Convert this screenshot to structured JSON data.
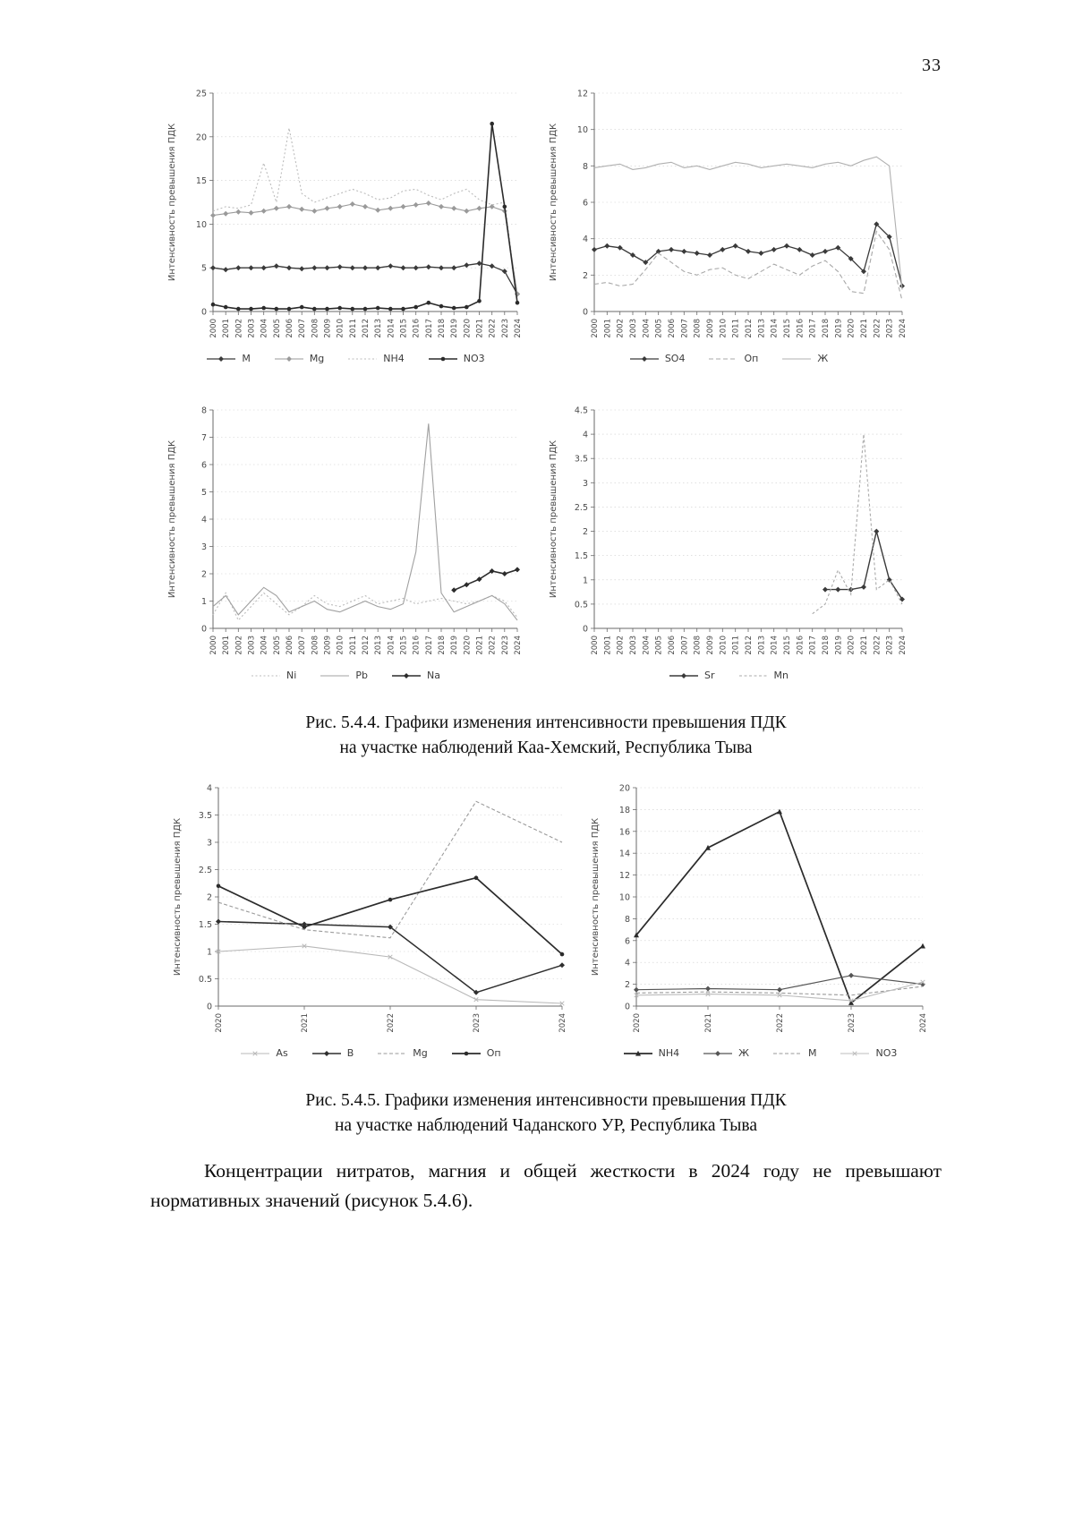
{
  "page": {
    "number": "33"
  },
  "figures": [
    {
      "caption_line1": "Рис. 5.4.4. Графики изменения интенсивности превышения ПДК",
      "caption_line2": "на участке наблюдений Каа-Хемский, Республика Тыва"
    },
    {
      "caption_line1": "Рис. 5.4.5. Графики изменения интенсивности превышения ПДК",
      "caption_line2": "на участке наблюдений Чаданского УР, Республика Тыва"
    }
  ],
  "paragraph": {
    "text": "Концентрации нитратов, магния и общей жесткости в 2024 году не превышают нормативных значений (рисунок 5.4.6)."
  },
  "chart_data": [
    {
      "type": "line",
      "ylabel": "Интенсивность превышения ПДК",
      "ylim": [
        0,
        25
      ],
      "ytick": 5,
      "grid": true,
      "legend_position": "bottom",
      "x": [
        "2000",
        "2001",
        "2002",
        "2003",
        "2004",
        "2005",
        "2006",
        "2007",
        "2008",
        "2009",
        "2010",
        "2011",
        "2012",
        "2013",
        "2014",
        "2015",
        "2016",
        "2017",
        "2018",
        "2019",
        "2020",
        "2021",
        "2022",
        "2023",
        "2024"
      ],
      "series": [
        {
          "name": "М",
          "values": [
            5,
            4.8,
            5,
            5,
            5,
            5.2,
            5,
            4.9,
            5,
            5,
            5.1,
            5,
            5,
            5,
            5.2,
            5,
            5,
            5.1,
            5,
            5,
            5.3,
            5.5,
            5.2,
            4.6,
            2
          ],
          "style": {
            "color": "#3a3a3a",
            "width": 1.3,
            "dash": "",
            "marker": "diamond"
          }
        },
        {
          "name": "Mg",
          "values": [
            11,
            11.2,
            11.4,
            11.3,
            11.5,
            11.8,
            12,
            11.7,
            11.5,
            11.8,
            12,
            12.3,
            12,
            11.6,
            11.8,
            12,
            12.2,
            12.4,
            12,
            11.8,
            11.5,
            11.8,
            12,
            11.5,
            2
          ],
          "style": {
            "color": "#9a9a9a",
            "width": 1.1,
            "dash": "",
            "marker": "diamond"
          }
        },
        {
          "name": "NH4",
          "values": [
            11.5,
            12,
            11.8,
            12.2,
            17,
            12.5,
            21,
            13.5,
            12.5,
            13,
            13.5,
            14,
            13.5,
            12.8,
            13,
            13.8,
            14,
            13.3,
            12.8,
            13.5,
            14,
            12.8,
            12.2,
            12.5,
            1.5
          ],
          "style": {
            "color": "#bcbcbc",
            "width": 1.1,
            "dash": "2 2.5",
            "marker": "none"
          }
        },
        {
          "name": "NO3",
          "values": [
            0.8,
            0.5,
            0.3,
            0.3,
            0.4,
            0.3,
            0.3,
            0.5,
            0.3,
            0.3,
            0.4,
            0.3,
            0.3,
            0.4,
            0.3,
            0.3,
            0.5,
            1,
            0.6,
            0.4,
            0.5,
            1.2,
            21.5,
            12,
            1
          ],
          "style": {
            "color": "#2b2b2b",
            "width": 1.6,
            "dash": "",
            "marker": "circle"
          }
        }
      ]
    },
    {
      "type": "line",
      "ylabel": "Интенсивность превышения ПДК",
      "ylim": [
        0,
        12
      ],
      "ytick": 2,
      "grid": true,
      "legend_position": "bottom",
      "x": [
        "2000",
        "2001",
        "2002",
        "2003",
        "2004",
        "2005",
        "2006",
        "2007",
        "2008",
        "2009",
        "2010",
        "2011",
        "2012",
        "2013",
        "2014",
        "2015",
        "2016",
        "2017",
        "2018",
        "2019",
        "2020",
        "2021",
        "2022",
        "2023",
        "2024"
      ],
      "series": [
        {
          "name": "SO4",
          "values": [
            3.4,
            3.6,
            3.5,
            3.1,
            2.7,
            3.3,
            3.4,
            3.3,
            3.2,
            3.1,
            3.4,
            3.6,
            3.3,
            3.2,
            3.4,
            3.6,
            3.4,
            3.1,
            3.3,
            3.5,
            2.9,
            2.2,
            4.8,
            4.1,
            1.4
          ],
          "style": {
            "color": "#3a3a3a",
            "width": 1.3,
            "dash": "",
            "marker": "diamond"
          }
        },
        {
          "name": "Оп",
          "values": [
            1.5,
            1.6,
            1.4,
            1.5,
            2.3,
            3.2,
            2.7,
            2.2,
            2,
            2.3,
            2.4,
            2,
            1.8,
            2.2,
            2.6,
            2.3,
            2,
            2.5,
            2.8,
            2.2,
            1.1,
            1,
            4.4,
            3.4,
            0.6
          ],
          "style": {
            "color": "#a8a8a8",
            "width": 1.1,
            "dash": "5 3",
            "marker": "none"
          }
        },
        {
          "name": "Ж",
          "values": [
            7.9,
            8,
            8.1,
            7.8,
            7.9,
            8.1,
            8.2,
            7.9,
            8,
            7.8,
            8,
            8.2,
            8.1,
            7.9,
            8,
            8.1,
            8,
            7.9,
            8.1,
            8.2,
            8,
            8.3,
            8.5,
            8,
            1.2
          ],
          "style": {
            "color": "#b0b0b0",
            "width": 1.1,
            "dash": "",
            "marker": "none"
          }
        }
      ]
    },
    {
      "type": "line",
      "ylabel": "Интенсивность превышения ПДК",
      "ylim": [
        0,
        8
      ],
      "ytick": 1,
      "grid": true,
      "legend_position": "bottom",
      "x": [
        "2000",
        "2001",
        "2002",
        "2003",
        "2004",
        "2005",
        "2006",
        "2007",
        "2008",
        "2009",
        "2010",
        "2011",
        "2012",
        "2013",
        "2014",
        "2015",
        "2016",
        "2017",
        "2018",
        "2019",
        "2020",
        "2021",
        "2022",
        "2023",
        "2024"
      ],
      "series": [
        {
          "name": "Ni",
          "values": [
            0.5,
            1.3,
            0.3,
            0.8,
            1.3,
            0.9,
            0.5,
            0.8,
            1.2,
            0.9,
            0.8,
            1,
            1.2,
            0.9,
            1,
            1.1,
            0.9,
            1,
            1.1,
            1,
            0.9,
            1,
            1.2,
            1,
            0.4
          ],
          "style": {
            "color": "#bcbcbc",
            "width": 1.1,
            "dash": "2 2.5",
            "marker": "none"
          }
        },
        {
          "name": "Pb",
          "values": [
            0.8,
            1.2,
            0.5,
            1,
            1.5,
            1.2,
            0.6,
            0.8,
            1,
            0.7,
            0.6,
            0.8,
            1,
            0.8,
            0.7,
            0.9,
            2.8,
            7.5,
            1.3,
            0.6,
            0.8,
            1,
            1.2,
            0.9,
            0.3
          ],
          "style": {
            "color": "#a0a0a0",
            "width": 1.1,
            "dash": "",
            "marker": "none"
          }
        },
        {
          "name": "Na",
          "values": [
            null,
            null,
            null,
            null,
            null,
            null,
            null,
            null,
            null,
            null,
            null,
            null,
            null,
            null,
            null,
            null,
            null,
            null,
            null,
            1.4,
            1.6,
            1.8,
            2.1,
            2,
            2.15
          ],
          "style": {
            "color": "#2b2b2b",
            "width": 1.6,
            "dash": "",
            "marker": "diamond"
          }
        }
      ]
    },
    {
      "type": "line",
      "ylabel": "Интенсивность превышения ПДК",
      "ylim": [
        0,
        4.5
      ],
      "ytick": 0.5,
      "grid": true,
      "legend_position": "bottom",
      "x": [
        "2000",
        "2001",
        "2002",
        "2003",
        "2004",
        "2005",
        "2006",
        "2007",
        "2008",
        "2009",
        "2010",
        "2011",
        "2012",
        "2013",
        "2014",
        "2015",
        "2016",
        "2017",
        "2018",
        "2019",
        "2020",
        "2021",
        "2022",
        "2023",
        "2024"
      ],
      "series": [
        {
          "name": "Sr",
          "values": [
            null,
            null,
            null,
            null,
            null,
            null,
            null,
            null,
            null,
            null,
            null,
            null,
            null,
            null,
            null,
            null,
            null,
            null,
            0.8,
            0.8,
            0.8,
            0.85,
            2,
            1,
            0.6
          ],
          "style": {
            "color": "#3a3a3a",
            "width": 1.4,
            "dash": "",
            "marker": "diamond"
          }
        },
        {
          "name": "Mn",
          "values": [
            null,
            null,
            null,
            null,
            null,
            null,
            null,
            null,
            null,
            null,
            null,
            null,
            null,
            null,
            null,
            null,
            null,
            0.3,
            0.5,
            1.2,
            0.7,
            4,
            0.8,
            1,
            0.5
          ],
          "style": {
            "color": "#aaaaaa",
            "width": 1.1,
            "dash": "3 2.5",
            "marker": "none"
          }
        }
      ]
    },
    {
      "type": "line",
      "ylabel": "Интенсивность превышения ПДК",
      "ylim": [
        0,
        4
      ],
      "ytick": 0.5,
      "grid": true,
      "legend_position": "bottom",
      "x": [
        "2020",
        "2021",
        "2022",
        "2023",
        "2024"
      ],
      "series": [
        {
          "name": "As",
          "values": [
            1,
            1.1,
            0.9,
            0.12,
            0.05
          ],
          "style": {
            "color": "#b8b8b8",
            "width": 1.1,
            "dash": "",
            "marker": "x"
          }
        },
        {
          "name": "B",
          "values": [
            1.55,
            1.5,
            1.45,
            0.25,
            0.75
          ],
          "style": {
            "color": "#2f2f2f",
            "width": 1.5,
            "dash": "",
            "marker": "diamond"
          }
        },
        {
          "name": "Mg",
          "values": [
            1.9,
            1.4,
            1.25,
            3.75,
            3
          ],
          "style": {
            "color": "#9a9a9a",
            "width": 1.1,
            "dash": "4 2.5",
            "marker": "none"
          }
        },
        {
          "name": "Оп",
          "values": [
            2.2,
            1.45,
            1.95,
            2.35,
            0.95
          ],
          "style": {
            "color": "#2b2b2b",
            "width": 1.7,
            "dash": "",
            "marker": "circle"
          }
        }
      ]
    },
    {
      "type": "line",
      "ylabel": "Интенсивность превышения ПДК",
      "ylim": [
        0,
        20
      ],
      "ytick": 2,
      "grid": true,
      "legend_position": "bottom",
      "x": [
        "2020",
        "2021",
        "2022",
        "2023",
        "2024"
      ],
      "series": [
        {
          "name": "NH4",
          "values": [
            6.5,
            14.5,
            17.8,
            0.3,
            5.5
          ],
          "style": {
            "color": "#2b2b2b",
            "width": 1.7,
            "dash": "",
            "marker": "triangle"
          }
        },
        {
          "name": "Ж",
          "values": [
            1.5,
            1.6,
            1.5,
            2.8,
            2
          ],
          "style": {
            "color": "#555555",
            "width": 1.2,
            "dash": "",
            "marker": "diamond"
          }
        },
        {
          "name": "М",
          "values": [
            1.2,
            1.3,
            1.2,
            1,
            1.8
          ],
          "style": {
            "color": "#9a9a9a",
            "width": 1.1,
            "dash": "4 2.5",
            "marker": "none"
          }
        },
        {
          "name": "NO3",
          "values": [
            1,
            1.1,
            1,
            0.5,
            2.2
          ],
          "style": {
            "color": "#bcbcbc",
            "width": 1.1,
            "dash": "",
            "marker": "x"
          }
        }
      ]
    }
  ]
}
